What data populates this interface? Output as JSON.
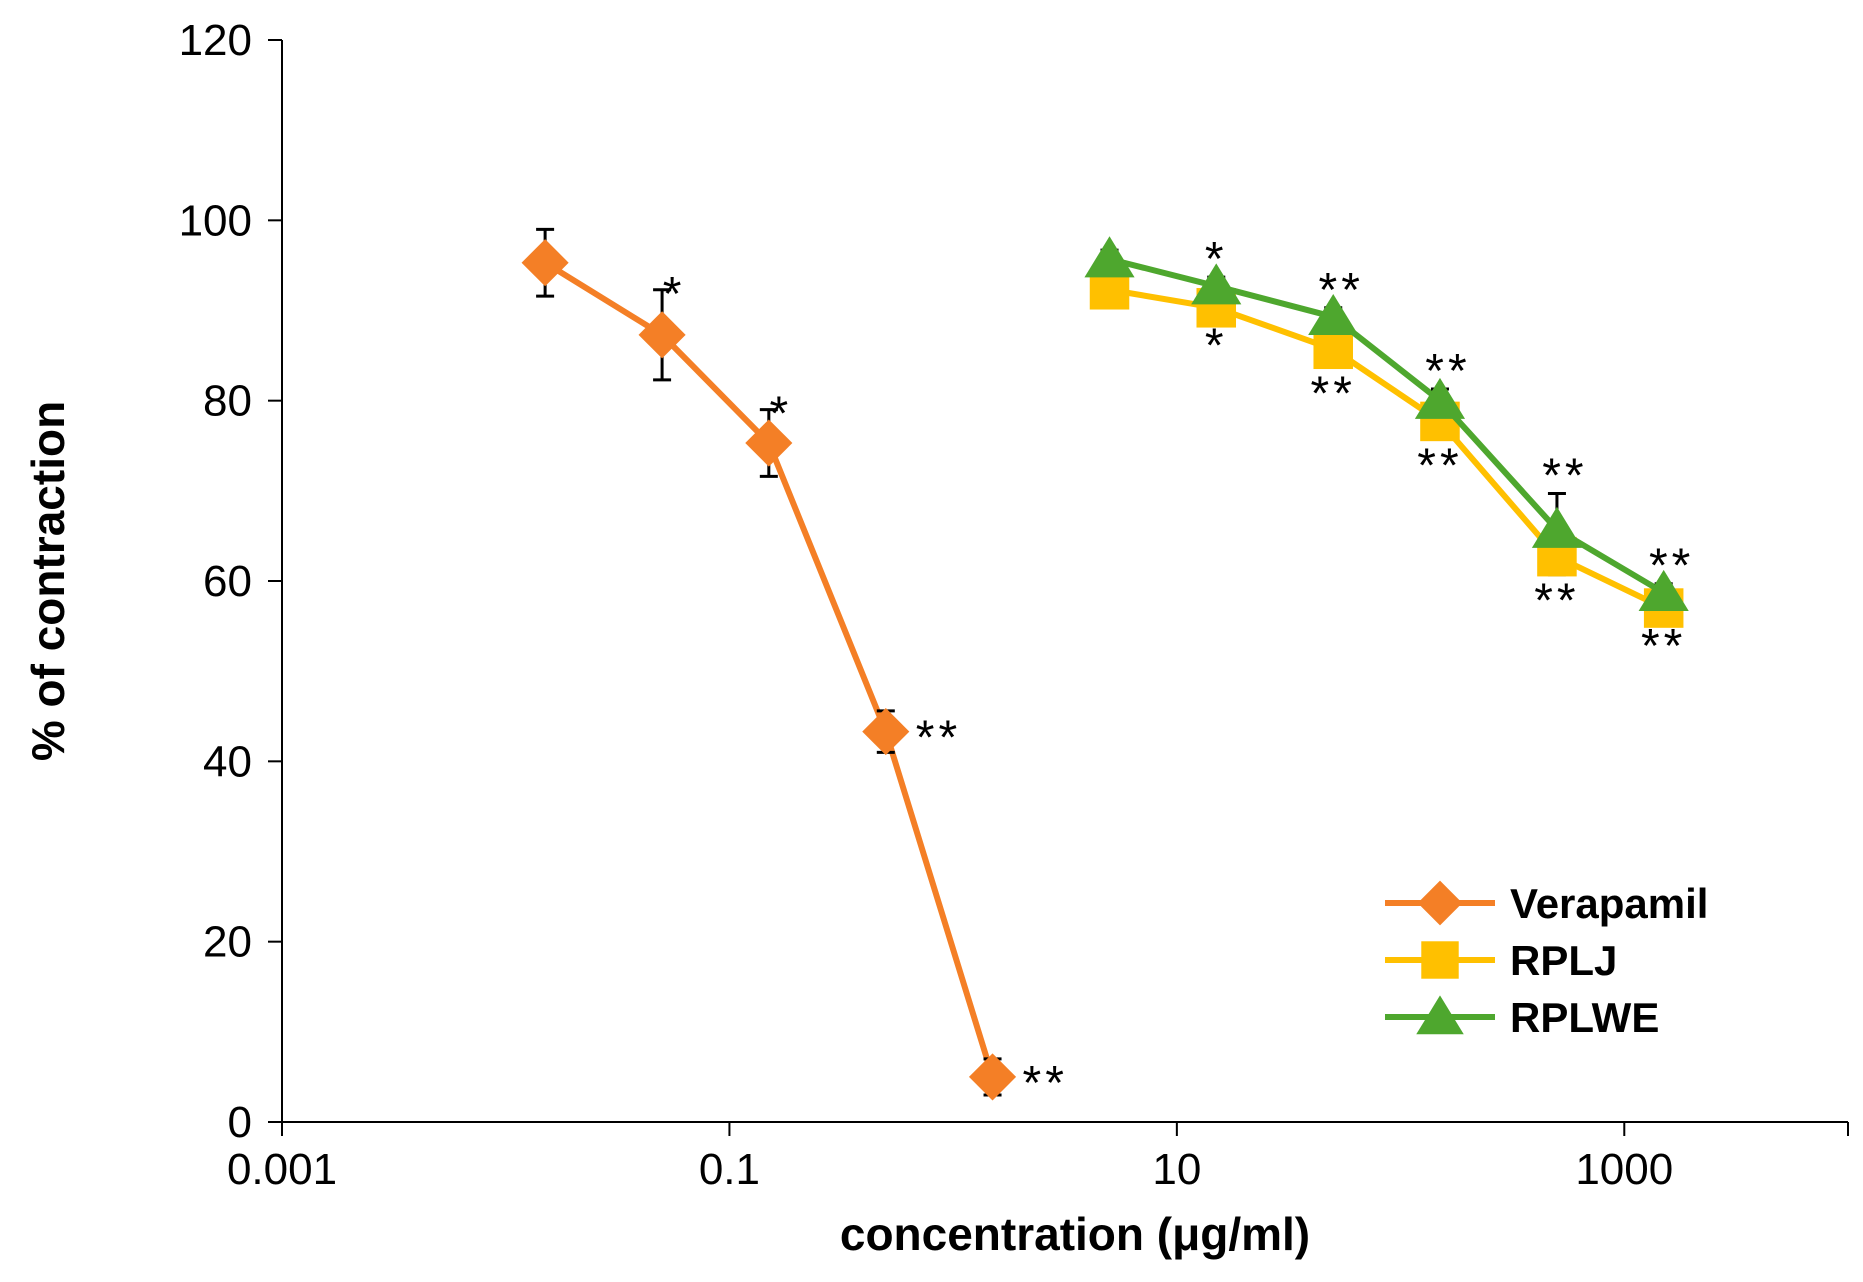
{
  "chart_data": {
    "type": "line",
    "title": "",
    "xlabel": "concentration (μg/ml)",
    "ylabel": "% of contraction",
    "x_scale": "log",
    "xlim": [
      0.001,
      10000
    ],
    "ylim": [
      0,
      120
    ],
    "x_ticks": [
      0.001,
      0.1,
      10,
      1000
    ],
    "x_tick_labels": [
      "0.001",
      "0.1",
      "10",
      "1000"
    ],
    "y_ticks": [
      0,
      20,
      40,
      60,
      80,
      100,
      120
    ],
    "y_tick_labels": [
      "0",
      "20",
      "40",
      "60",
      "80",
      "100",
      "120"
    ],
    "legend_position": "bottom-right",
    "series": [
      {
        "name": "Verapamil",
        "color": "#F47F26",
        "marker": "diamond",
        "error_style": "both",
        "points": [
          {
            "x": 0.015,
            "y": 95.3,
            "err": 3.7,
            "sig": ""
          },
          {
            "x": 0.05,
            "y": 87.3,
            "err": 5.0,
            "sig": "*"
          },
          {
            "x": 0.15,
            "y": 75.3,
            "err": 3.7,
            "sig": "*"
          },
          {
            "x": 0.5,
            "y": 43.3,
            "err": 2.3,
            "sig": "**"
          },
          {
            "x": 1.5,
            "y": 5.0,
            "err": 2.0,
            "sig": "**"
          }
        ]
      },
      {
        "name": "RPLJ",
        "color": "#FFC000",
        "marker": "square",
        "error_style": "down",
        "points": [
          {
            "x": 5,
            "y": 92.3,
            "err": 1.3,
            "sig": ""
          },
          {
            "x": 15,
            "y": 90.3,
            "err": 1.3,
            "sig": "*"
          },
          {
            "x": 50,
            "y": 85.7,
            "err": 2.0,
            "sig": "**"
          },
          {
            "x": 150,
            "y": 77.7,
            "err": 2.0,
            "sig": "**"
          },
          {
            "x": 500,
            "y": 62.7,
            "err": 2.0,
            "sig": "**"
          },
          {
            "x": 1500,
            "y": 57.0,
            "err": 1.3,
            "sig": "**"
          }
        ]
      },
      {
        "name": "RPLWE",
        "color": "#4EA72E",
        "marker": "triangle",
        "error_style": "up",
        "points": [
          {
            "x": 5,
            "y": 95.7,
            "err": 1.0,
            "sig": ""
          },
          {
            "x": 15,
            "y": 92.7,
            "err": 1.0,
            "sig": "*"
          },
          {
            "x": 50,
            "y": 89.3,
            "err": 1.0,
            "sig": "**"
          },
          {
            "x": 150,
            "y": 80.0,
            "err": 1.3,
            "sig": "**"
          },
          {
            "x": 500,
            "y": 65.7,
            "err": 4.0,
            "sig": "**"
          },
          {
            "x": 1500,
            "y": 58.7,
            "err": 1.0,
            "sig": "**"
          }
        ]
      }
    ]
  }
}
